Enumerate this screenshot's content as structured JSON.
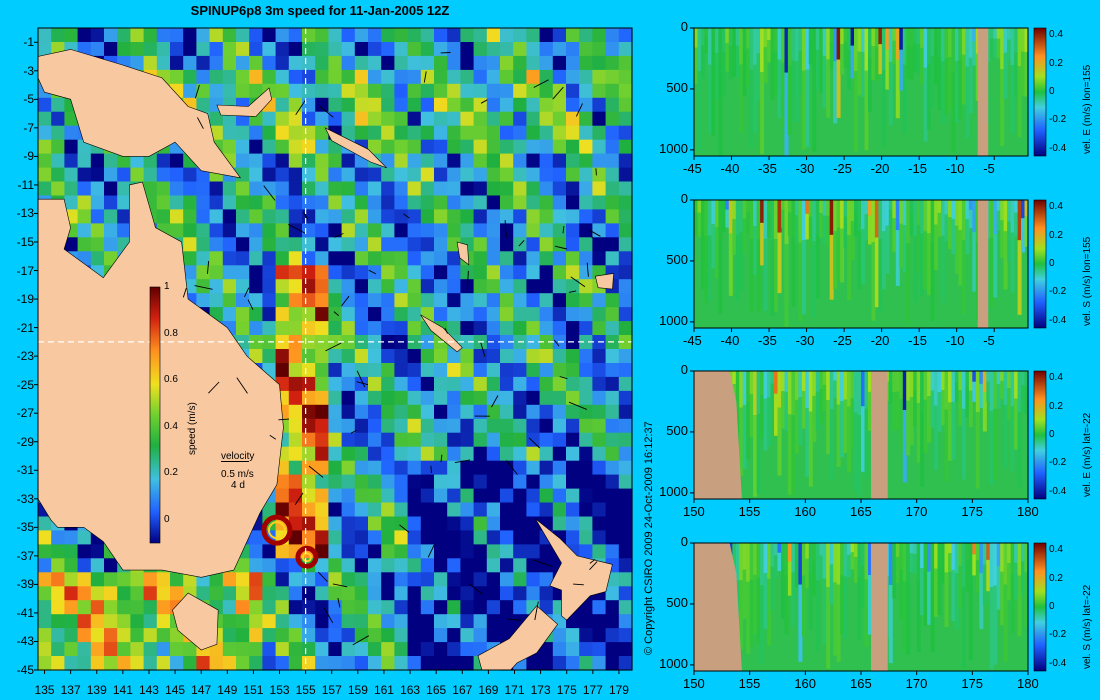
{
  "title": "SPINUP6p8 3m speed for 11-Jan-2005 12Z",
  "copyright": "© Copyright CSIRO 2009   24-Oct-2009 16:12:37",
  "colors": {
    "background": "#00ccff",
    "land": "#f8c8a0",
    "section_land": "#c8a080"
  },
  "map": {
    "x_ticks": [
      "135",
      "137",
      "139",
      "141",
      "143",
      "145",
      "147",
      "149",
      "151",
      "153",
      "155",
      "157",
      "159",
      "161",
      "163",
      "165",
      "167",
      "169",
      "171",
      "173",
      "175",
      "177",
      "179"
    ],
    "y_ticks": [
      "-1",
      "-3",
      "-5",
      "-7",
      "-9",
      "-11",
      "-13",
      "-15",
      "-17",
      "-19",
      "-21",
      "-23",
      "-25",
      "-27",
      "-29",
      "-31",
      "-33",
      "-35",
      "-37",
      "-39",
      "-41",
      "-43",
      "-45"
    ],
    "section_lon": 155,
    "section_lat": -22,
    "colorbar": {
      "label": "speed (m/s)",
      "ticks": [
        "1",
        "0.8",
        "0.6",
        "0.4",
        "0.2",
        "0"
      ],
      "range": [
        -0.1,
        1
      ]
    },
    "velocity_ref": {
      "title": "velocity",
      "speed": "0.5 m/s",
      "duration": "4 d"
    }
  },
  "chart_data": [
    {
      "type": "heatmap",
      "variable": "vel. E (m/s) lon=155",
      "x_range": [
        -45,
        -0.5
      ],
      "y_range": [
        0,
        1050
      ],
      "x_ticks": [
        "-45",
        "-40",
        "-35",
        "-30",
        "-25",
        "-20",
        "-15",
        "-10",
        "-5"
      ],
      "y_ticks": [
        "0",
        "500",
        "1000"
      ],
      "colorbar_ticks": [
        "0.4",
        "0.2",
        "0",
        "-0.2",
        "-0.4"
      ],
      "clim": [
        -0.45,
        0.45
      ]
    },
    {
      "type": "heatmap",
      "variable": "vel. S (m/s) lon=155",
      "x_range": [
        -45,
        -0.5
      ],
      "y_range": [
        0,
        1050
      ],
      "x_ticks": [
        "-45",
        "-40",
        "-35",
        "-30",
        "-25",
        "-20",
        "-15",
        "-10",
        "-5"
      ],
      "y_ticks": [
        "0",
        "500",
        "1000"
      ],
      "colorbar_ticks": [
        "0.4",
        "0.2",
        "0",
        "-0.2",
        "-0.4"
      ],
      "clim": [
        -0.45,
        0.45
      ]
    },
    {
      "type": "heatmap",
      "variable": "vel. E (m/s) lat=-22",
      "x_range": [
        150,
        180
      ],
      "y_range": [
        0,
        1050
      ],
      "x_ticks": [
        "150",
        "155",
        "160",
        "165",
        "170",
        "175",
        "180"
      ],
      "y_ticks": [
        "0",
        "500",
        "1000"
      ],
      "colorbar_ticks": [
        "0.4",
        "0.2",
        "0",
        "-0.2",
        "-0.4"
      ],
      "clim": [
        -0.45,
        0.45
      ]
    },
    {
      "type": "heatmap",
      "variable": "vel. S (m/s) lat=-22",
      "x_range": [
        150,
        180
      ],
      "y_range": [
        0,
        1050
      ],
      "x_ticks": [
        "150",
        "155",
        "160",
        "165",
        "170",
        "175",
        "180"
      ],
      "y_ticks": [
        "0",
        "500",
        "1000"
      ],
      "colorbar_ticks": [
        "0.4",
        "0.2",
        "0",
        "-0.2",
        "-0.4"
      ],
      "clim": [
        -0.45,
        0.45
      ]
    }
  ]
}
